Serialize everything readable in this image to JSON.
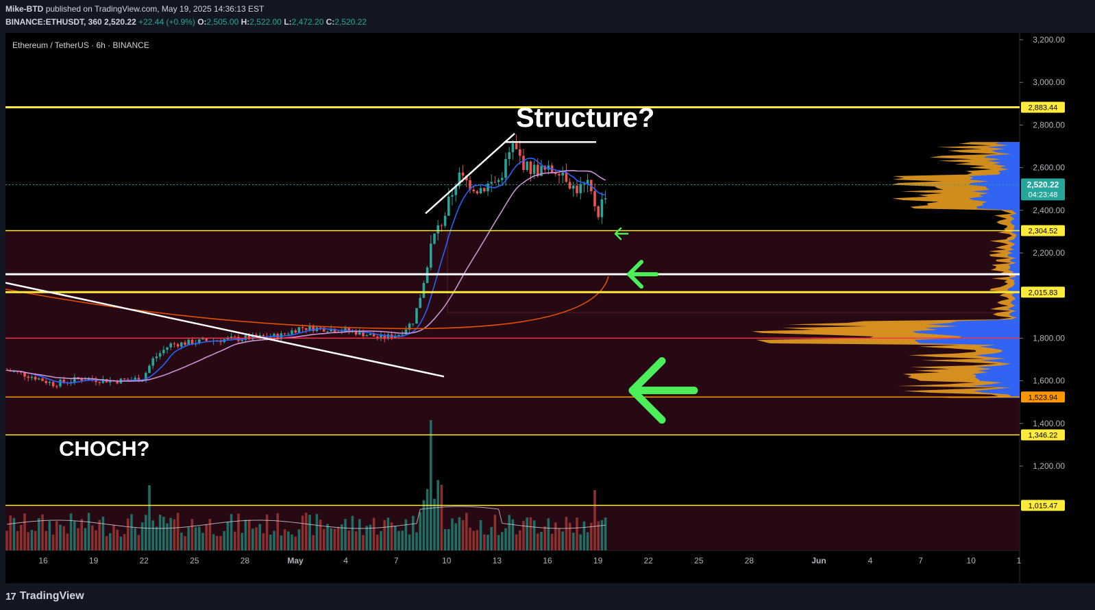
{
  "header": {
    "publisher": "Mike-BTD",
    "published_text": "published on TradingView.com, May 19, 2025 14:36:13 EST",
    "symbol": "BINANCE:ETHUSDT, 360",
    "last": "2,520.22",
    "change": "+22.44 (+0.9%)",
    "open_label": "O:",
    "open": "2,505.00",
    "high_label": "H:",
    "high": "2,522.00",
    "low_label": "L:",
    "low": "2,472.20",
    "close_label": "C:",
    "close": "2,520.22"
  },
  "chart": {
    "legend_title": "Ethereum / TetherUS · 6h · BINANCE",
    "annotations": {
      "structure": "Structure?",
      "choch": "CHOCH?"
    },
    "price_axis": {
      "ticks": [
        "3,200.00",
        "3,000.00",
        "2,800.00",
        "2,600.00",
        "2,400.00",
        "2,200.00",
        "1,800.00",
        "1,600.00",
        "1,400.00",
        "1,200.00"
      ],
      "tick_values": [
        3200,
        3000,
        2800,
        2600,
        2400,
        2200,
        1800,
        1600,
        1400,
        1200
      ],
      "min": 1000,
      "max": 3240,
      "current_price_label": "2,520.22",
      "current_price_value": 2520.22,
      "countdown": "04:23:48"
    },
    "levels": [
      {
        "label": "2,883.44",
        "value": 2883.44,
        "color": "#ffeb3b",
        "style": "thick"
      },
      {
        "label": "2,304.52",
        "value": 2304.52,
        "color": "#ffeb3b",
        "style": "thin"
      },
      {
        "label": "",
        "value": 2100,
        "color": "#ffffff",
        "style": "thick"
      },
      {
        "label": "2,015.83",
        "value": 2015.83,
        "color": "#ffeb3b",
        "style": "thick"
      },
      {
        "label": "",
        "value": 1800,
        "color": "#f23645",
        "style": "thin"
      },
      {
        "label": "1,523.94",
        "value": 1523.94,
        "color": "#ff9800",
        "style": "thin"
      },
      {
        "label": "1,346.22",
        "value": 1346.22,
        "color": "#ffeb3b",
        "style": "thin"
      },
      {
        "label": "1,015.47",
        "value": 1015.47,
        "color": "#ffeb3b",
        "style": "thin"
      }
    ],
    "time_axis": [
      "16",
      "19",
      "22",
      "25",
      "28",
      "May",
      "4",
      "7",
      "10",
      "13",
      "16",
      "19",
      "22",
      "25",
      "28",
      "Jun",
      "4",
      "7",
      "10",
      "1"
    ],
    "colors": {
      "background": "#000000",
      "up": "#26a69a",
      "down": "#ef5350",
      "zone": "#2a0a14",
      "ma_fast": "#2962ff",
      "ma_mid": "#ce93d8",
      "ma_slow": "#e65100",
      "arrow": "#4cef5a",
      "vp_blue": "#2962ff",
      "vp_orange": "#f5a623"
    }
  },
  "footer": {
    "brand": "TradingView",
    "brand_mark": "17"
  }
}
